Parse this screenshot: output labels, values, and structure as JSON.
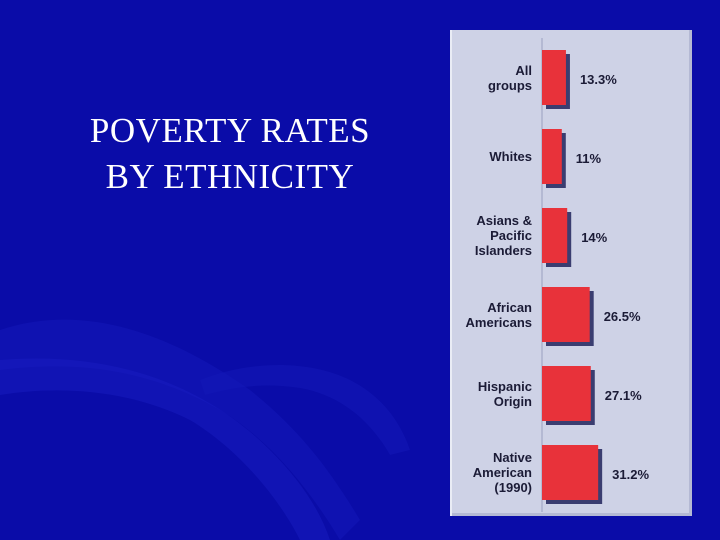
{
  "slide": {
    "title_line1": "POVERTY RATES",
    "title_line2": "BY ETHNICITY"
  },
  "colors": {
    "background": "#0a0ca8",
    "panel": "#ced2e6",
    "bar": "#e8323a",
    "bar_shadow": "#3a3d70",
    "text": "#1b1b36"
  },
  "chart_data": {
    "type": "bar",
    "orientation": "horizontal",
    "categories": [
      "All\ngroups",
      "Whites",
      "Asians &\nPacific\nIslanders",
      "African\nAmericans",
      "Hispanic\nOrigin",
      "Native\nAmerican\n(1990)"
    ],
    "values": [
      13.3,
      11,
      14,
      26.5,
      27.1,
      31.2
    ],
    "value_labels": [
      "13.3%",
      "11%",
      "14%",
      "26.5%",
      "27.1%",
      "31.2%"
    ],
    "unit": "%",
    "grid": false,
    "legend": "none"
  }
}
